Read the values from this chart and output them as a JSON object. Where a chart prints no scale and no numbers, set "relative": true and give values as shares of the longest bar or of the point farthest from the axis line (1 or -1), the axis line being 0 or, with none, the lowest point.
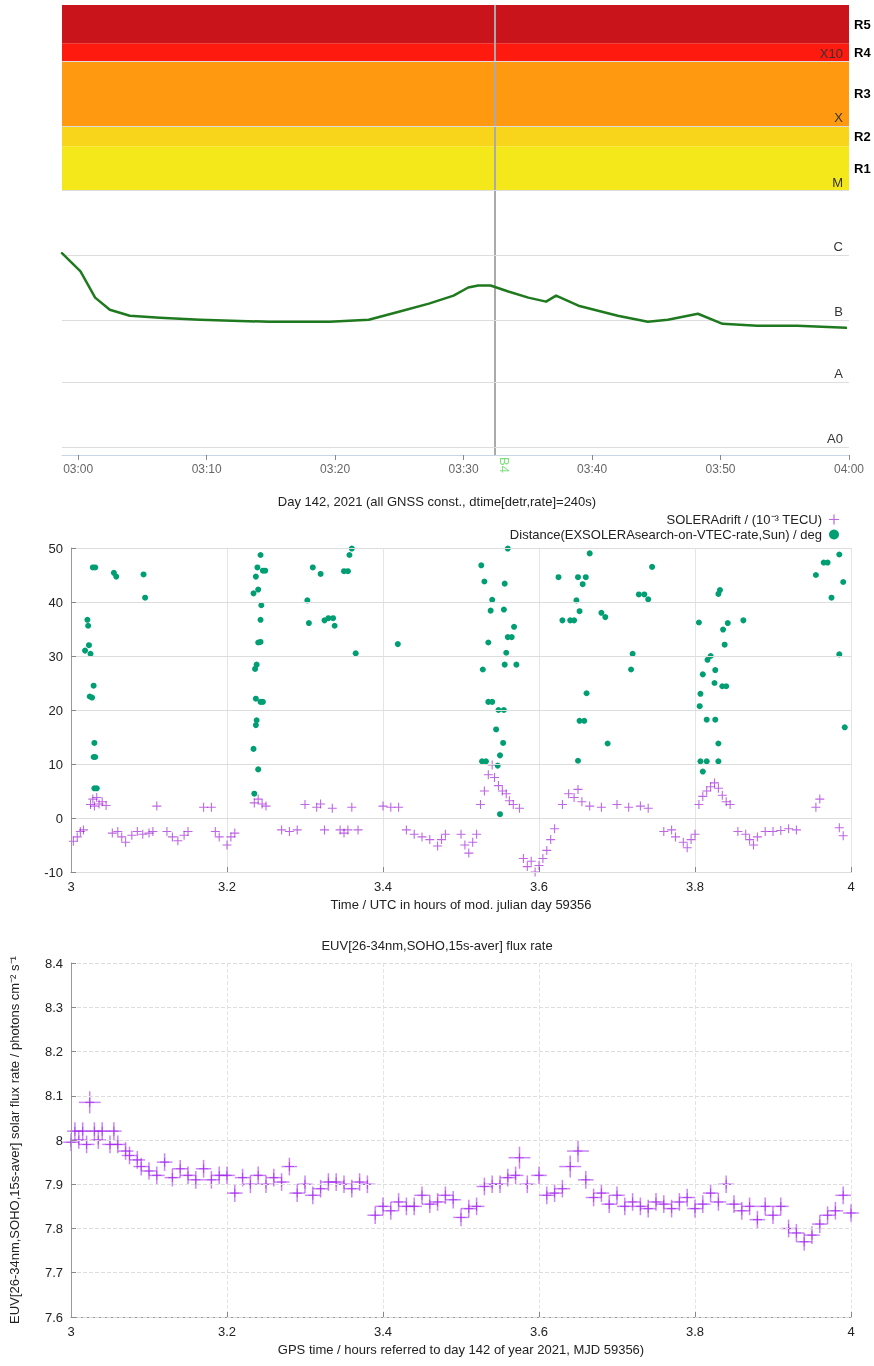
{
  "chart_data": [
    {
      "type": "line",
      "relative": true,
      "marker": "none",
      "xlim": [
        2.979,
        4.0
      ],
      "xticks": [
        {
          "value": 3,
          "label": "03:00"
        },
        {
          "value": 3.1667,
          "label": "03:10"
        },
        {
          "value": 3.3333,
          "label": "03:20"
        },
        {
          "value": 3.5,
          "label": "03:30"
        },
        {
          "value": 3.6667,
          "label": "03:40"
        },
        {
          "value": 3.8333,
          "label": "03:50"
        },
        {
          "value": 4,
          "label": "04:00"
        }
      ],
      "x": [
        2.979,
        3.003,
        3.022,
        3.041,
        3.067,
        3.106,
        3.158,
        3.248,
        3.326,
        3.377,
        3.416,
        3.455,
        3.487,
        3.506,
        3.519,
        3.535,
        3.558,
        3.584,
        3.607,
        3.62,
        3.649,
        3.7,
        3.739,
        3.765,
        3.804,
        3.836,
        3.881,
        3.933,
        3.996
      ],
      "series": [
        {
          "color": "#1f7a1f",
          "values": [
            1,
            0.91,
            0.78,
            0.72,
            0.69,
            0.68,
            0.67,
            0.66,
            0.66,
            0.67,
            0.71,
            0.75,
            0.79,
            0.83,
            0.84,
            0.84,
            0.81,
            0.78,
            0.76,
            0.79,
            0.74,
            0.69,
            0.66,
            0.67,
            0.7,
            0.65,
            0.64,
            0.64,
            0.63
          ]
        }
      ],
      "bands": [
        {
          "axis": "y",
          "from": 1.31,
          "to": 1.53,
          "label": "R1",
          "color": "#f4e81a"
        },
        {
          "axis": "y",
          "from": 1.53,
          "to": 1.63,
          "label": "R2",
          "color": "#f8d51a"
        },
        {
          "axis": "y",
          "from": 1.63,
          "to": 1.95,
          "label": "R3",
          "color": "#ff9a10"
        },
        {
          "axis": "y",
          "from": 1.95,
          "to": 2.04,
          "label": "R4",
          "color": "#ff1a10"
        },
        {
          "axis": "y",
          "from": 2.04,
          "to": 2.23,
          "label": "R5",
          "color": "#c8141a"
        }
      ],
      "ref_lines": [
        {
          "axis": "x",
          "value": 3.537,
          "label": "B4",
          "color": "#aaaaaa"
        },
        {
          "axis": "y",
          "value": 0.04,
          "label": "A0",
          "color": "#dddddd"
        },
        {
          "axis": "y",
          "value": 0.36,
          "label": "A",
          "color": "#dddddd"
        },
        {
          "axis": "y",
          "value": 0.67,
          "label": "B",
          "color": "#dddddd"
        },
        {
          "axis": "y",
          "value": 0.99,
          "label": "C",
          "color": "#dddddd"
        },
        {
          "axis": "y",
          "value": 1.31,
          "label": "M",
          "color": "#dddddd"
        },
        {
          "axis": "y",
          "value": 1.63,
          "label": "X",
          "color": "#dddddd"
        },
        {
          "axis": "y",
          "value": 1.95,
          "label": "X10",
          "color": "#dddddd"
        }
      ]
    },
    {
      "type": "scatter",
      "title": "Day 142, 2021 (all GNSS const., dtime[detr,rate]=240s)",
      "xlabel": "Time / UTC in hours of mod. julian day 59356",
      "grid": true,
      "legend": "top right",
      "xlim": [
        3,
        4
      ],
      "xticks": [
        3,
        3.2,
        3.4,
        3.6,
        3.8,
        4
      ],
      "ylim": [
        -10,
        50
      ],
      "yticks": [
        -10,
        0,
        10,
        20,
        30,
        40,
        50
      ],
      "series": [
        {
          "name": "SOLERAdrift / (10⁻³ TECU)",
          "color": "#9400d3",
          "marker": "cross",
          "x": [
            3.003,
            3.008,
            3.012,
            3.016,
            3.025,
            3.028,
            3.03,
            3.033,
            3.036,
            3.04,
            3.045,
            3.053,
            3.06,
            3.065,
            3.07,
            3.078,
            3.085,
            3.092,
            3.1,
            3.105,
            3.11,
            3.123,
            3.13,
            3.137,
            3.145,
            3.15,
            3.17,
            3.18,
            3.185,
            3.19,
            3.2,
            3.205,
            3.21,
            3.235,
            3.24,
            3.245,
            3.25,
            3.27,
            3.28,
            3.29,
            3.3,
            3.315,
            3.32,
            3.325,
            3.335,
            3.345,
            3.35,
            3.355,
            3.36,
            3.368,
            3.4,
            3.41,
            3.42,
            3.43,
            3.44,
            3.45,
            3.46,
            3.47,
            3.475,
            3.48,
            3.5,
            3.505,
            3.51,
            3.515,
            3.52,
            3.525,
            3.53,
            3.535,
            3.54,
            3.543,
            3.548,
            3.553,
            3.558,
            3.562,
            3.567,
            3.575,
            3.58,
            3.585,
            3.59,
            3.595,
            3.6,
            3.605,
            3.61,
            3.615,
            3.62,
            3.63,
            3.638,
            3.645,
            3.65,
            3.655,
            3.665,
            3.68,
            3.7,
            3.715,
            3.73,
            3.74,
            3.76,
            3.77,
            3.775,
            3.785,
            3.79,
            3.795,
            3.8,
            3.805,
            3.81,
            3.815,
            3.82,
            3.825,
            3.83,
            3.835,
            3.84,
            3.845,
            3.855,
            3.865,
            3.87,
            3.875,
            3.88,
            3.89,
            3.9,
            3.91,
            3.92,
            3.93,
            3.955,
            3.96,
            3.985,
            3.99
          ],
          "values": [
            -4.3,
            -3.5,
            -2.5,
            -2.2,
            2.5,
            3.5,
            2.2,
            3.8,
            2.6,
            3.0,
            2.3,
            -2.8,
            -2.5,
            -3.5,
            -4.5,
            -3.2,
            -2.5,
            -3.0,
            -2.8,
            -2.5,
            2.2,
            -2.5,
            -3.5,
            -4.2,
            -3.2,
            -2.5,
            2.0,
            2.0,
            -2.5,
            -3.5,
            -5,
            -3.5,
            -2.8,
            2.8,
            3.5,
            2.6,
            2.2,
            -2.2,
            -2.5,
            -2.2,
            2.5,
            2.0,
            2.6,
            -2.2,
            1.8,
            -2.2,
            -2.8,
            -2.2,
            2.0,
            -2.2,
            2.2,
            2.0,
            2.0,
            -2.2,
            -3.0,
            -3.5,
            -4.0,
            -5.2,
            -4.0,
            -3.0,
            -3.0,
            -5.0,
            -6.5,
            -4.5,
            -3,
            2.5,
            5,
            8,
            9.8,
            7.5,
            6.0,
            5.0,
            4.5,
            3.2,
            2.5,
            1.8,
            -7.5,
            -9,
            -8,
            -10,
            -8.8,
            -7.5,
            -6,
            -4,
            -2,
            2.5,
            4.5,
            3.8,
            5.3,
            3.0,
            2.2,
            2.0,
            2.5,
            2.0,
            2.2,
            1.8,
            -2.5,
            -2.2,
            -3.5,
            -4.5,
            -5.5,
            -4,
            -3,
            2.5,
            4,
            5,
            5.8,
            6.5,
            5.5,
            4.2,
            3,
            2.5,
            -2.5,
            -3,
            -4,
            -5,
            -3.5,
            -2.5,
            -2.5,
            -2.3,
            -2.0,
            -2.2,
            2.0,
            3.5,
            -1.8,
            -3.3
          ]
        },
        {
          "name": "Distance(EXSOLERAsearch-on-VTEC-rate,Sun) / deg",
          "color": "#009e73",
          "marker": "circle",
          "x": [
            3.018,
            3.021,
            3.022,
            3.023,
            3.025,
            3.024,
            3.027,
            3.029,
            3.028,
            3.031,
            3.03,
            3.029,
            3.031,
            3.03,
            3.033,
            3.055,
            3.058,
            3.093,
            3.095,
            3.235,
            3.234,
            3.237,
            3.238,
            3.24,
            3.237,
            3.243,
            3.246,
            3.236,
            3.238,
            3.24,
            3.243,
            3.234,
            3.237,
            3.239,
            3.24,
            3.243,
            3.244,
            3.246,
            3.249,
            3.243,
            3.303,
            3.305,
            3.31,
            3.32,
            3.325,
            3.33,
            3.336,
            3.338,
            3.35,
            3.355,
            3.357,
            3.36,
            3.365,
            3.419,
            3.526,
            3.53,
            3.527,
            3.532,
            3.528,
            3.535,
            3.538,
            3.54,
            3.535,
            3.54,
            3.545,
            3.55,
            3.554,
            3.548,
            3.555,
            3.556,
            3.558,
            3.56,
            3.565,
            3.568,
            3.571,
            3.555,
            3.556,
            3.55,
            3.547,
            3.56,
            3.625,
            3.63,
            3.64,
            3.645,
            3.648,
            3.652,
            3.65,
            3.656,
            3.66,
            3.65,
            3.652,
            3.658,
            3.661,
            3.665,
            3.68,
            3.685,
            3.688,
            3.718,
            3.72,
            3.728,
            3.735,
            3.74,
            3.745,
            3.805,
            3.807,
            3.806,
            3.807,
            3.815,
            3.83,
            3.81,
            3.815,
            3.826,
            3.83,
            3.825,
            3.835,
            3.84,
            3.81,
            3.816,
            3.82,
            3.826,
            3.83,
            3.832,
            3.836,
            3.838,
            3.842,
            3.862,
            3.955,
            3.965,
            3.97,
            3.975,
            3.985,
            3.99,
            3.985,
            3.992
          ],
          "values": [
            31,
            36.7,
            35.6,
            32,
            30.4,
            22.5,
            22.3,
            24.5,
            46.4,
            46.4,
            13.9,
            11.3,
            11.3,
            5.5,
            5.5,
            45.4,
            44.7,
            45.1,
            40.8,
            4.5,
            12.8,
            17.2,
            18.1,
            9.0,
            22.1,
            21.5,
            21.5,
            27.6,
            28.4,
            32.5,
            32.6,
            41.6,
            44.7,
            46.4,
            42.3,
            36.7,
            39.4,
            45.8,
            45.8,
            48.7,
            40.3,
            36.1,
            46.4,
            45.2,
            36.6,
            37,
            37,
            35.6,
            45.7,
            45.7,
            48.7,
            49.9,
            30.5,
            32.2,
            46.8,
            43.8,
            10.5,
            10.5,
            27.5,
            32.5,
            38.4,
            40.4,
            21.5,
            21.5,
            16.4,
            11.6,
            13.9,
            20,
            20,
            28.4,
            30.6,
            33.5,
            33.5,
            35.4,
            28.4,
            38.6,
            43.4,
            0.7,
            9.7,
            49.9,
            44.6,
            36.6,
            36.6,
            36.6,
            40.3,
            38.3,
            44.6,
            43.3,
            44.6,
            10.6,
            18,
            18,
            23.1,
            49,
            38,
            37.2,
            13.8,
            27.5,
            30.4,
            41.4,
            41.4,
            40.5,
            46.5,
            36.2,
            23,
            20.7,
            10.5,
            10.5,
            10.5,
            8.6,
            18.2,
            18.2,
            13.8,
            25,
            24.4,
            24.4,
            26.6,
            29.3,
            30,
            27.4,
            41.5,
            42.2,
            34.9,
            32.1,
            36.1,
            36.6,
            45,
            47.3,
            47.3,
            40.8,
            48.8,
            43.7,
            30.3,
            16.8
          ]
        }
      ]
    },
    {
      "type": "scatter",
      "title": "EUV[26-34nm,SOHO,15s-aver] flux rate",
      "xlabel": "GPS time / hours referred to day 142 of year 2021, MJD 59356)",
      "ylabel": "EUV[26-34nm,SOHO,15s-aver] solar flux rate / photons cm⁻² s⁻¹",
      "grid": true,
      "marker": "cross",
      "xlim": [
        3,
        4
      ],
      "xticks": [
        3,
        3.2,
        3.4,
        3.6,
        3.8,
        4
      ],
      "ylim": [
        7.6,
        8.4
      ],
      "yticks": [
        7.6,
        7.7,
        7.8,
        7.9,
        8,
        8.1,
        8.2,
        8.3,
        8.4
      ],
      "x": [
        3.0,
        3.005,
        3.01,
        3.015,
        3.02,
        3.024,
        3.03,
        3.035,
        3.04,
        3.05,
        3.055,
        3.06,
        3.07,
        3.075,
        3.085,
        3.09,
        3.1,
        3.11,
        3.12,
        3.13,
        3.14,
        3.15,
        3.16,
        3.17,
        3.18,
        3.19,
        3.2,
        3.21,
        3.22,
        3.23,
        3.24,
        3.25,
        3.26,
        3.27,
        3.28,
        3.29,
        3.3,
        3.31,
        3.32,
        3.33,
        3.34,
        3.35,
        3.36,
        3.37,
        3.38,
        3.39,
        3.4,
        3.41,
        3.42,
        3.43,
        3.44,
        3.45,
        3.46,
        3.47,
        3.48,
        3.49,
        3.5,
        3.51,
        3.52,
        3.53,
        3.54,
        3.55,
        3.56,
        3.57,
        3.575,
        3.585,
        3.6,
        3.61,
        3.62,
        3.63,
        3.64,
        3.65,
        3.66,
        3.67,
        3.68,
        3.69,
        3.7,
        3.71,
        3.72,
        3.73,
        3.74,
        3.75,
        3.76,
        3.77,
        3.78,
        3.79,
        3.8,
        3.81,
        3.82,
        3.83,
        3.84,
        3.85,
        3.86,
        3.87,
        3.88,
        3.89,
        3.9,
        3.91,
        3.92,
        3.93,
        3.94,
        3.95,
        3.96,
        3.97,
        3.98,
        3.99,
        4.0
      ],
      "series": [
        {
          "color": "#a020f0",
          "values": [
            7.995,
            8.02,
            8.0,
            8.02,
            7.99,
            8.085,
            8.02,
            8.0,
            8.02,
            7.99,
            8.02,
            7.99,
            7.975,
            7.965,
            7.955,
            7.94,
            7.93,
            7.92,
            7.95,
            7.915,
            7.935,
            7.92,
            7.91,
            7.935,
            7.91,
            7.92,
            7.92,
            7.88,
            7.915,
            7.9,
            7.92,
            7.9,
            7.915,
            7.905,
            7.94,
            7.88,
            7.9,
            7.875,
            7.89,
            7.905,
            7.905,
            7.9,
            7.89,
            7.905,
            7.9,
            7.83,
            7.85,
            7.84,
            7.86,
            7.85,
            7.85,
            7.875,
            7.855,
            7.86,
            7.875,
            7.865,
            7.825,
            7.845,
            7.85,
            7.895,
            7.9,
            7.9,
            7.915,
            7.92,
            7.96,
            7.9,
            7.92,
            7.875,
            7.88,
            7.89,
            7.94,
            7.975,
            7.91,
            7.87,
            7.88,
            7.855,
            7.875,
            7.85,
            7.86,
            7.85,
            7.845,
            7.86,
            7.855,
            7.845,
            7.86,
            7.87,
            7.845,
            7.855,
            7.88,
            7.86,
            7.9,
            7.855,
            7.84,
            7.85,
            7.82,
            7.85,
            7.83,
            7.85,
            7.8,
            7.79,
            7.77,
            7.785,
            7.81,
            7.83,
            7.84,
            7.875,
            7.835
          ],
          "errors": [
            0.02,
            0.02,
            0.02,
            0.02,
            0.02,
            0.025,
            0.02,
            0.02,
            0.02,
            0.02,
            0.02,
            0.02,
            0.02,
            0.02,
            0.02,
            0.02,
            0.02,
            0.02,
            0.02,
            0.02,
            0.02,
            0.02,
            0.02,
            0.02,
            0.02,
            0.02,
            0.02,
            0.02,
            0.02,
            0.02,
            0.02,
            0.02,
            0.02,
            0.02,
            0.02,
            0.02,
            0.02,
            0.02,
            0.02,
            0.02,
            0.02,
            0.02,
            0.02,
            0.02,
            0.02,
            0.02,
            0.02,
            0.02,
            0.02,
            0.02,
            0.02,
            0.02,
            0.02,
            0.02,
            0.02,
            0.02,
            0.02,
            0.02,
            0.02,
            0.02,
            0.02,
            0.02,
            0.02,
            0.02,
            0.025,
            0.02,
            0.02,
            0.02,
            0.02,
            0.02,
            0.025,
            0.025,
            0.02,
            0.02,
            0.02,
            0.02,
            0.02,
            0.02,
            0.02,
            0.02,
            0.02,
            0.02,
            0.02,
            0.02,
            0.02,
            0.02,
            0.02,
            0.02,
            0.02,
            0.02,
            0.02,
            0.02,
            0.02,
            0.02,
            0.02,
            0.02,
            0.02,
            0.02,
            0.02,
            0.02,
            0.02,
            0.02,
            0.02,
            0.02,
            0.02,
            0.02,
            0.02
          ],
          "xerrors": [
            0.01,
            0.01,
            0.01,
            0.01,
            0.01,
            0.014,
            0.01,
            0.01,
            0.01,
            0.01,
            0.01,
            0.01,
            0.01,
            0.01,
            0.01,
            0.01,
            0.01,
            0.01,
            0.01,
            0.01,
            0.01,
            0.01,
            0.01,
            0.01,
            0.01,
            0.01,
            0.01,
            0.01,
            0.01,
            0.01,
            0.01,
            0.01,
            0.01,
            0.01,
            0.01,
            0.01,
            0.01,
            0.01,
            0.01,
            0.01,
            0.01,
            0.01,
            0.01,
            0.01,
            0.01,
            0.01,
            0.01,
            0.01,
            0.01,
            0.01,
            0.01,
            0.01,
            0.01,
            0.01,
            0.01,
            0.01,
            0.01,
            0.01,
            0.01,
            0.01,
            0.01,
            0.01,
            0.01,
            0.01,
            0.014,
            0.01,
            0.01,
            0.01,
            0.01,
            0.01,
            0.014,
            0.014,
            0.01,
            0.01,
            0.01,
            0.01,
            0.01,
            0.01,
            0.01,
            0.01,
            0.01,
            0.01,
            0.01,
            0.01,
            0.01,
            0.01,
            0.01,
            0.01,
            0.01,
            0.01,
            0.01,
            0.01,
            0.01,
            0.01,
            0.01,
            0.01,
            0.01,
            0.01,
            0.01,
            0.01,
            0.01,
            0.01,
            0.01,
            0.01,
            0.01,
            0.01,
            0.01
          ]
        }
      ]
    }
  ]
}
